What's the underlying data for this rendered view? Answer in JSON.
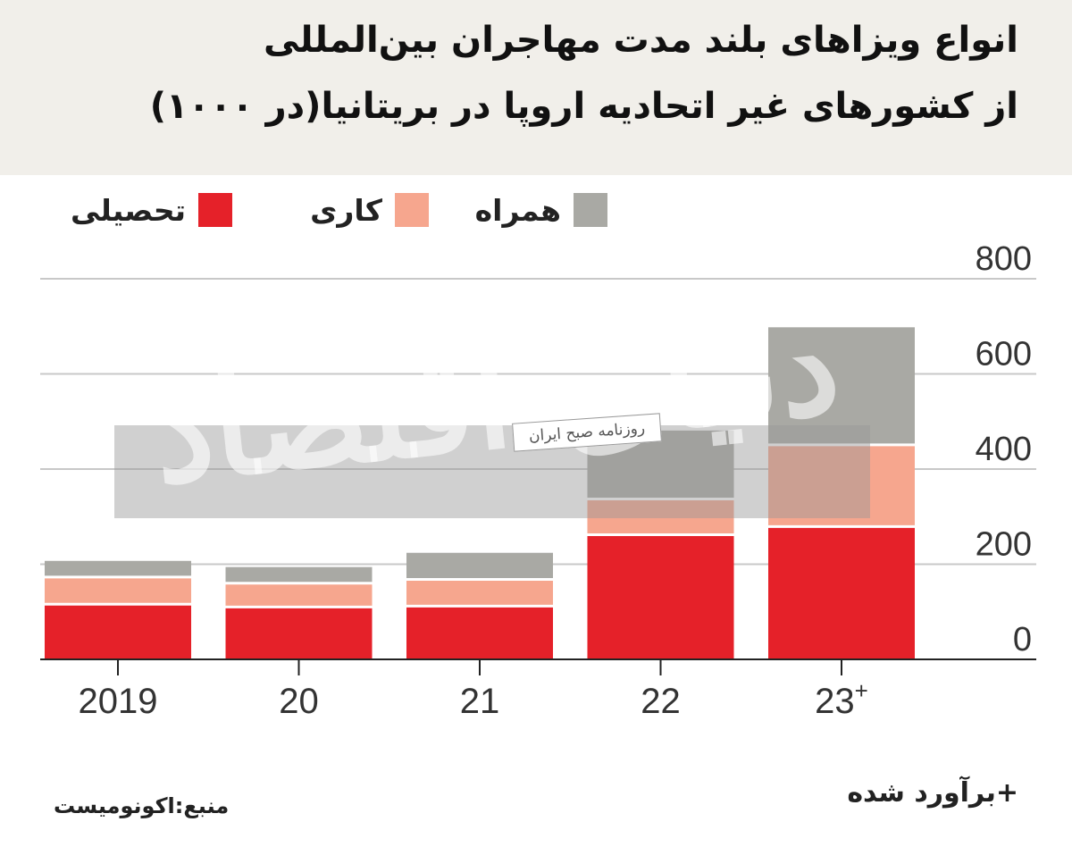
{
  "title_line1": "انواع ویزاهای بلند مدت مهاجران بین‌المللی",
  "title_line2": "از کشورهای غیر اتحادیه اروپا در بریتانیا(در ۱۰۰۰)",
  "legend": [
    {
      "label": "تحصیلی",
      "color": "#e52129"
    },
    {
      "label": "کاری",
      "color": "#f6a68e"
    },
    {
      "label": "همراه",
      "color": "#a9a9a4"
    }
  ],
  "source": "منبع:اکونومیست",
  "note": "+برآورد شده",
  "watermark": {
    "main": "دنیای اقتصاد",
    "sub": "روزنامه صبح ایران"
  },
  "chart_data": {
    "type": "bar",
    "stacked": true,
    "categories": [
      "2019",
      "20",
      "21",
      "22",
      "23"
    ],
    "category_superscripts": [
      "",
      "",
      "",
      "",
      "+"
    ],
    "series": [
      {
        "name": "تحصیلی",
        "color": "#e52129",
        "values": [
          116,
          110,
          112,
          262,
          279
        ]
      },
      {
        "name": "کاری",
        "color": "#f6a68e",
        "values": [
          57,
          50,
          56,
          75,
          172
        ]
      },
      {
        "name": "همراه",
        "color": "#a9a9a4",
        "values": [
          34,
          34,
          56,
          144,
          247
        ]
      }
    ],
    "y_ticks": [
      0,
      200,
      400,
      600,
      800
    ],
    "ylim": [
      0,
      800
    ],
    "grid": true,
    "y_axis_position": "right",
    "legend_position": "top"
  }
}
